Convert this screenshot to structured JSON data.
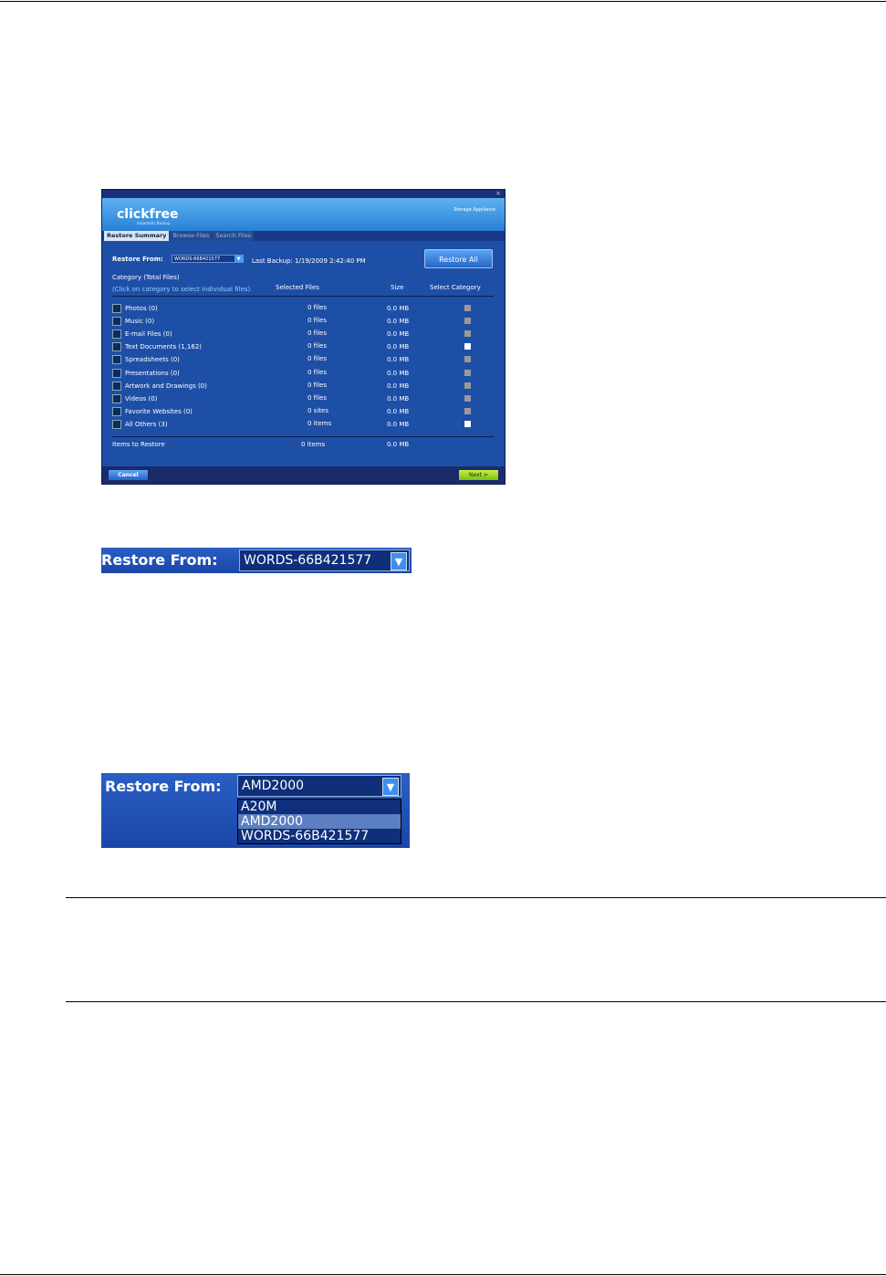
{
  "app": {
    "close_icon": "close-icon",
    "logo": "clickfree",
    "logo_tagline": "Automatic Backup",
    "brand": "Storage Appliance",
    "tabs": [
      {
        "label": "Restore Summary",
        "active": true
      },
      {
        "label": "Browse Files"
      },
      {
        "label": "Search Files"
      }
    ],
    "restore_from_label": "Restore From:",
    "restore_from_value": "WORDS-66B421577",
    "last_backup": "Last Backup: 1/19/2009 2:42:40 PM",
    "restore_all": "Restore All",
    "headers": {
      "category": "Category (Total Files)",
      "hint": "(Click on category to select individual files)",
      "selected": "Selected Files",
      "size": "Size",
      "select": "Select Category"
    },
    "rows": [
      {
        "label": "Photos (0)",
        "selected": "0 files",
        "size": "0.0 MB",
        "checked": false
      },
      {
        "label": "Music (0)",
        "selected": "0 files",
        "size": "0.0 MB",
        "checked": false
      },
      {
        "label": "E-mail Files (0)",
        "selected": "0 files",
        "size": "0.0 MB",
        "checked": false
      },
      {
        "label": "Text Documents (1,162)",
        "selected": "0 files",
        "size": "0.0 MB",
        "checked": true
      },
      {
        "label": "Spreadsheets (0)",
        "selected": "0 files",
        "size": "0.0 MB",
        "checked": false
      },
      {
        "label": "Presentations (0)",
        "selected": "0 files",
        "size": "0.0 MB",
        "checked": false
      },
      {
        "label": "Artwork and Drawings (0)",
        "selected": "0 files",
        "size": "0.0 MB",
        "checked": false
      },
      {
        "label": "Videos (0)",
        "selected": "0 files",
        "size": "0.0 MB",
        "checked": false
      },
      {
        "label": "Favorite Websites (0)",
        "selected": "0 sites",
        "size": "0.0 MB",
        "checked": false
      },
      {
        "label": "All Others (3)",
        "selected": "0 items",
        "size": "0.0 MB",
        "checked": true
      }
    ],
    "total": {
      "label": "Items to Restore",
      "selected": "0 items",
      "size": "0.0 MB"
    },
    "cancel": "Cancel",
    "next": "Next >"
  },
  "restore_from_closed": {
    "label": "Restore From:",
    "value": "WORDS-66B421577"
  },
  "restore_from_open": {
    "label": "Restore From:",
    "value": "AMD2000",
    "options": [
      "A20M",
      "AMD2000",
      "WORDS-66B421577"
    ],
    "highlighted": 1
  }
}
